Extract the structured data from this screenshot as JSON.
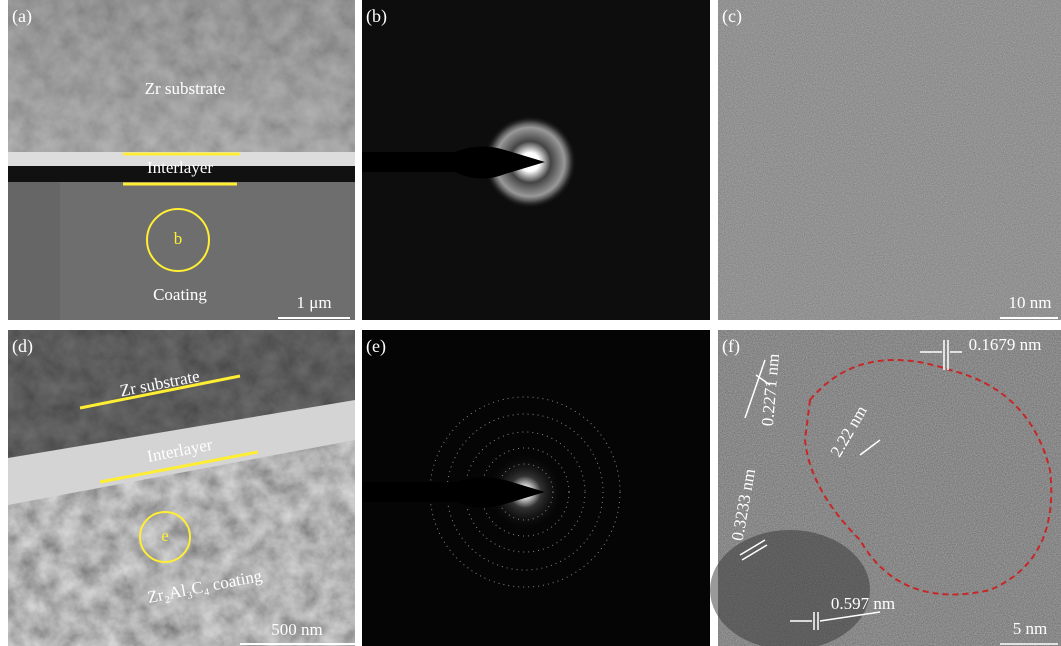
{
  "panels": [
    {
      "label": "(a)",
      "annotations": [
        "Zr substrate",
        "Interlayer",
        "b",
        "Coating"
      ],
      "scale_bar": "1 μm"
    },
    {
      "label": "(b)"
    },
    {
      "label": "(c)",
      "scale_bar": "10 nm"
    },
    {
      "label": "(d)",
      "annotations": [
        "Zr substrate",
        "Interlayer",
        "e",
        "Zr₂Al₃C₄ coating"
      ],
      "scale_bar": "500 nm"
    },
    {
      "label": "(e)"
    },
    {
      "label": "(f)",
      "annotations": [
        "0.1679 nm",
        "0.2271 nm",
        "2.22 nm",
        "0.3233 nm",
        "0.597 nm"
      ],
      "scale_bar": "5 nm"
    }
  ]
}
